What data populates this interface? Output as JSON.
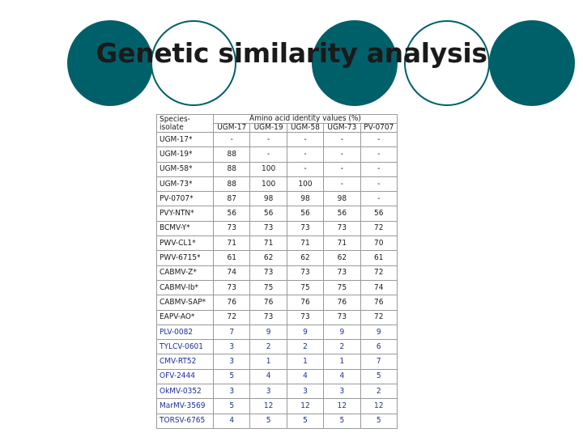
{
  "title": "Genetic similarity analysis",
  "circles": [
    "filled",
    "ring",
    "filled",
    "ring",
    "filled"
  ],
  "colors": {
    "teal": "#00606a",
    "blue_text": "#1f2f9a"
  },
  "table": {
    "species_header": "Species-isolate",
    "group_header": "Amino acid identity values (%)",
    "columns": [
      "UGM-17",
      "UGM-19",
      "UGM-58",
      "UGM-73",
      "PV-0707"
    ],
    "rows": [
      {
        "name": "UGM-17*",
        "values": [
          "-",
          "-",
          "-",
          "-",
          "-"
        ]
      },
      {
        "name": "UGM-19*",
        "values": [
          "88",
          "-",
          "-",
          "-",
          "-"
        ]
      },
      {
        "name": "UGM-58*",
        "values": [
          "88",
          "100",
          "-",
          "-",
          "-"
        ]
      },
      {
        "name": "UGM-73*",
        "values": [
          "88",
          "100",
          "100",
          "-",
          "-"
        ]
      },
      {
        "name": "PV-0707*",
        "values": [
          "87",
          "98",
          "98",
          "98",
          "-"
        ]
      },
      {
        "name": "PVY-NTN*",
        "values": [
          "56",
          "56",
          "56",
          "56",
          "56"
        ]
      },
      {
        "name": "BCMV-Y*",
        "values": [
          "73",
          "73",
          "73",
          "73",
          "72"
        ]
      },
      {
        "name": "PWV-CL1*",
        "values": [
          "71",
          "71",
          "71",
          "71",
          "70"
        ]
      },
      {
        "name": "PWV-6715*",
        "values": [
          "61",
          "62",
          "62",
          "62",
          "61"
        ]
      },
      {
        "name": "CABMV-Z*",
        "values": [
          "74",
          "73",
          "73",
          "73",
          "72"
        ]
      },
      {
        "name": "CABMV-Ib*",
        "values": [
          "73",
          "75",
          "75",
          "75",
          "74"
        ]
      },
      {
        "name": "CABMV-SAP*",
        "values": [
          "76",
          "76",
          "76",
          "76",
          "76"
        ]
      },
      {
        "name": "EAPV-AO*",
        "values": [
          "72",
          "73",
          "73",
          "73",
          "72"
        ]
      },
      {
        "name": "PLV-0082",
        "values": [
          "7",
          "9",
          "9",
          "9",
          "9"
        ]
      },
      {
        "name": "TYLCV-0601",
        "values": [
          "3",
          "2",
          "2",
          "2",
          "6"
        ]
      },
      {
        "name": "CMV-RT52",
        "values": [
          "3",
          "1",
          "1",
          "1",
          "7"
        ]
      },
      {
        "name": "OFV-2444",
        "values": [
          "5",
          "4",
          "4",
          "4",
          "5"
        ]
      },
      {
        "name": "OkMV-0352",
        "values": [
          "3",
          "3",
          "3",
          "3",
          "2"
        ]
      },
      {
        "name": "MarMV-3569",
        "values": [
          "5",
          "12",
          "12",
          "12",
          "12"
        ]
      },
      {
        "name": "TORSV-6765",
        "values": [
          "4",
          "5",
          "5",
          "5",
          "5"
        ]
      }
    ]
  }
}
